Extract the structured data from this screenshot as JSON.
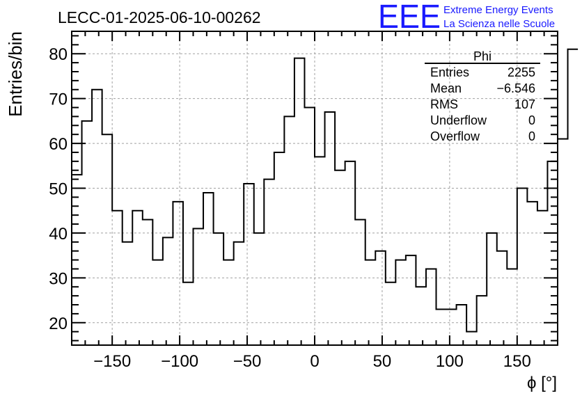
{
  "chart_data": {
    "type": "histogram",
    "title": "LECC-01-2025-06-10-00262",
    "xlabel": "ϕ [°]",
    "ylabel": "Entries/bin",
    "xlim": [
      -180,
      180
    ],
    "ylim": [
      15,
      85
    ],
    "grid": true,
    "bin_width": 7.5,
    "x_ticks": [
      -150,
      -100,
      -50,
      0,
      50,
      100,
      150
    ],
    "y_ticks": [
      20,
      30,
      40,
      50,
      60,
      70,
      80
    ],
    "values": [
      53,
      65,
      72,
      62,
      45,
      38,
      45,
      43,
      34,
      39,
      47,
      29,
      41,
      49,
      40,
      34,
      38,
      51,
      40,
      52,
      58,
      66,
      79,
      68,
      57,
      67,
      54,
      56,
      43,
      34,
      36,
      29,
      34,
      35,
      28,
      32,
      23,
      23,
      24,
      18,
      26,
      40,
      36,
      32,
      50,
      47,
      45,
      56,
      61,
      81
    ],
    "stats_box": {
      "title": "Phi",
      "rows": [
        {
          "label": "Entries",
          "value": "2255"
        },
        {
          "label": "Mean",
          "value": "−6.546"
        },
        {
          "label": "RMS",
          "value": "107"
        },
        {
          "label": "Underflow",
          "value": "0"
        },
        {
          "label": "Overflow",
          "value": "0"
        }
      ]
    },
    "logo": {
      "text": "EEE",
      "line1": "Extreme Energy Events",
      "line2": "La Scienza nelle Scuole",
      "color": "#1a1aff"
    }
  }
}
